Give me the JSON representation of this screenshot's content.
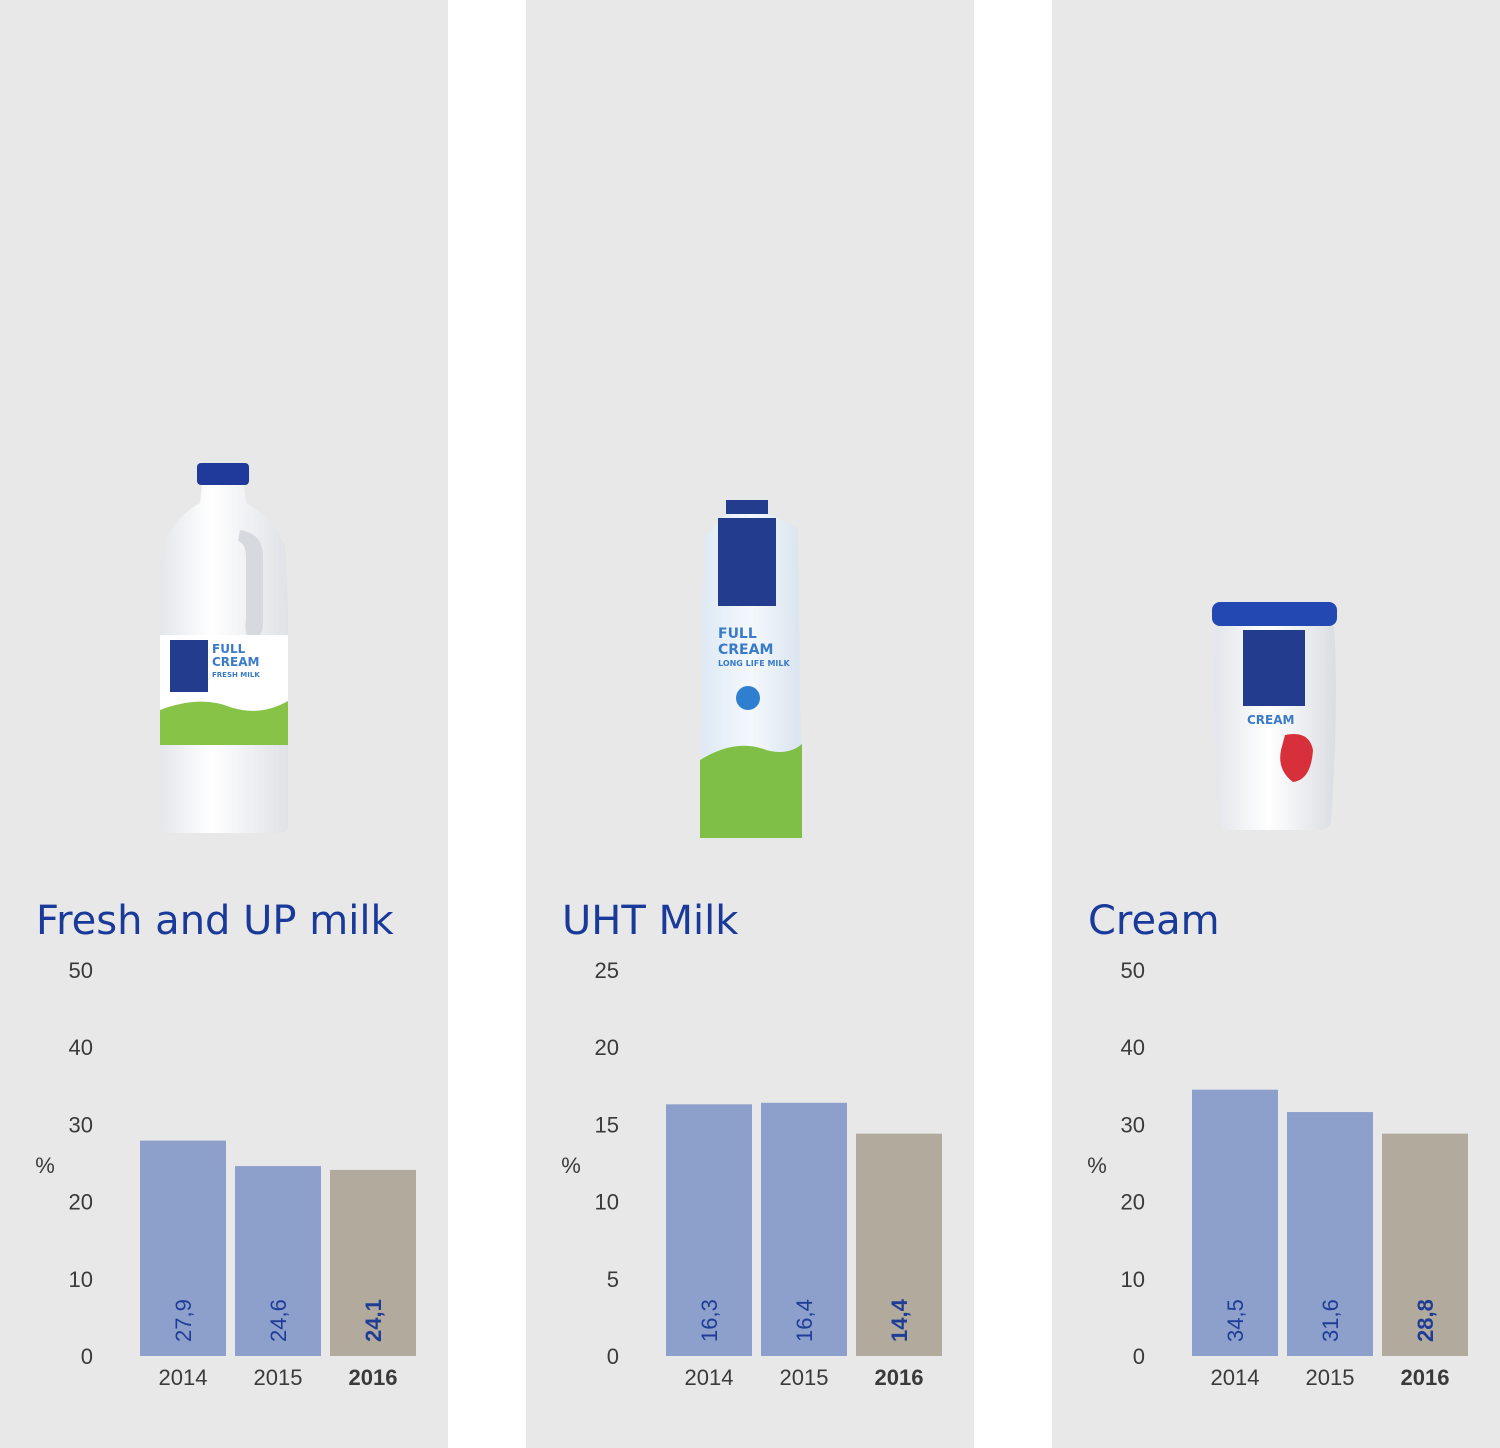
{
  "colors": {
    "panel_bg": "#e8e8e9",
    "bar_past": "#8da0cc",
    "bar_current": "#b2aa9c",
    "value_label": "#1f3d96",
    "title": "#1a3a9a",
    "axis_text": "#3a3a3a"
  },
  "panels": [
    {
      "title": "Fresh and UP milk",
      "product_icon": "milk-jug-icon",
      "product_label": [
        "FULL",
        "CREAM",
        "FRESH MILK"
      ],
      "chart_data": {
        "type": "bar",
        "categories": [
          "2014",
          "2015",
          "2016"
        ],
        "values": [
          27.9,
          24.6,
          24.1
        ],
        "value_labels": [
          "27,9",
          "24,6",
          "24,1"
        ],
        "highlight_index": 2,
        "ylabel": "%",
        "ylim": [
          0,
          50
        ],
        "yticks": [
          "0",
          "10",
          "20",
          "30",
          "40",
          "50"
        ]
      }
    },
    {
      "title": "UHT Milk",
      "product_icon": "milk-carton-icon",
      "product_label": [
        "FULL",
        "CREAM",
        "LONG LIFE MILK"
      ],
      "chart_data": {
        "type": "bar",
        "categories": [
          "2014",
          "2015",
          "2016"
        ],
        "values": [
          16.3,
          16.4,
          14.4
        ],
        "value_labels": [
          "16,3",
          "16,4",
          "14,4"
        ],
        "highlight_index": 2,
        "ylabel": "%",
        "ylim": [
          0,
          25
        ],
        "yticks": [
          "0",
          "5",
          "10",
          "15",
          "20",
          "25"
        ]
      }
    },
    {
      "title": "Cream",
      "product_icon": "cream-tub-icon",
      "product_label": [
        "CREAM"
      ],
      "chart_data": {
        "type": "bar",
        "categories": [
          "2014",
          "2015",
          "2016"
        ],
        "values": [
          34.5,
          31.6,
          28.8
        ],
        "value_labels": [
          "34,5",
          "31,6",
          "28,8"
        ],
        "highlight_index": 2,
        "ylabel": "%",
        "ylim": [
          0,
          50
        ],
        "yticks": [
          "0",
          "10",
          "20",
          "30",
          "40",
          "50"
        ]
      }
    }
  ]
}
